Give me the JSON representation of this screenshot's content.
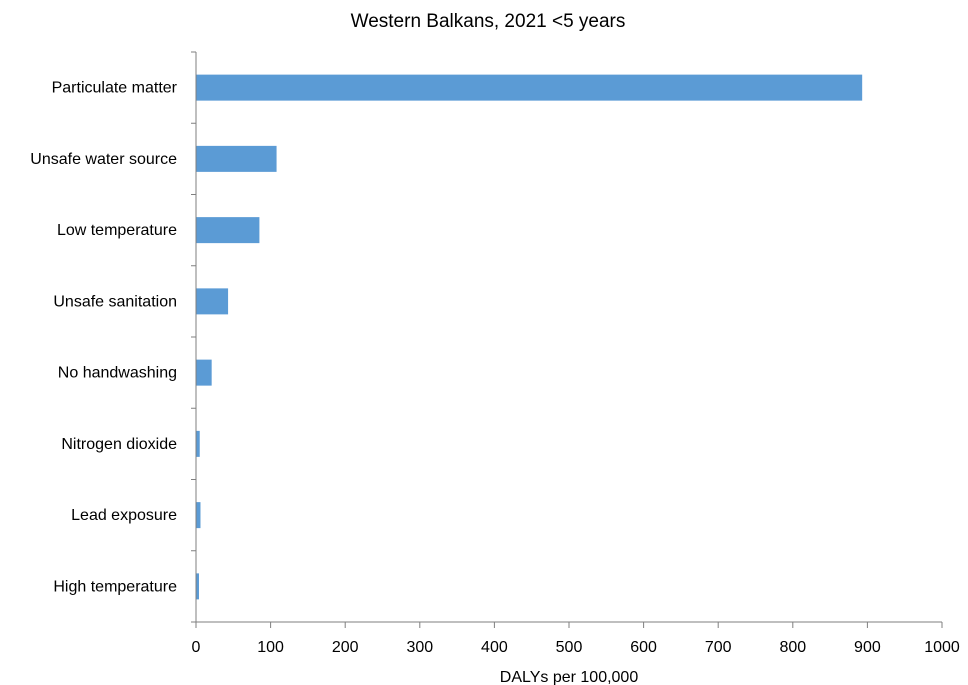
{
  "chart_data": {
    "type": "bar",
    "orientation": "horizontal",
    "title": "Western Balkans, 2021 <5 years",
    "xlabel": "DALYs per 100,000",
    "ylabel": "",
    "categories": [
      "Particulate matter",
      "Unsafe water source",
      "Low temperature",
      "Unsafe sanitation",
      "No handwashing",
      "Nitrogen dioxide",
      "Lead exposure",
      "High temperature"
    ],
    "values": [
      893,
      108,
      85,
      43,
      21,
      5,
      6,
      4
    ],
    "xlim": [
      0,
      1000
    ],
    "xticks": [
      "0",
      "100",
      "200",
      "300",
      "400",
      "500",
      "600",
      "700",
      "800",
      "900",
      "1000"
    ],
    "grid": false,
    "legend": "none",
    "bar_color": "#5b9bd5",
    "axis_color": "#7f7f7f"
  }
}
